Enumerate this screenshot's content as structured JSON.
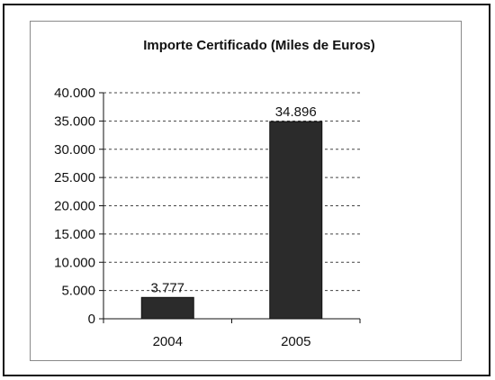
{
  "chart_data": {
    "type": "bar",
    "title": "Importe Certificado (Miles de Euros)",
    "categories": [
      "2004",
      "2005"
    ],
    "values": [
      3777,
      34896
    ],
    "value_labels": [
      "3.777",
      "34.896"
    ],
    "ylim": [
      0,
      40000
    ],
    "yticks": [
      0,
      5000,
      10000,
      15000,
      20000,
      25000,
      30000,
      35000,
      40000
    ],
    "ytick_labels": [
      "0",
      "5.000",
      "10.000",
      "15.000",
      "20.000",
      "25.000",
      "30.000",
      "35.000",
      "40.000"
    ],
    "grid": "horizontal dashed",
    "bar_color": "#2b2b2b",
    "xlabel": "",
    "ylabel": ""
  }
}
